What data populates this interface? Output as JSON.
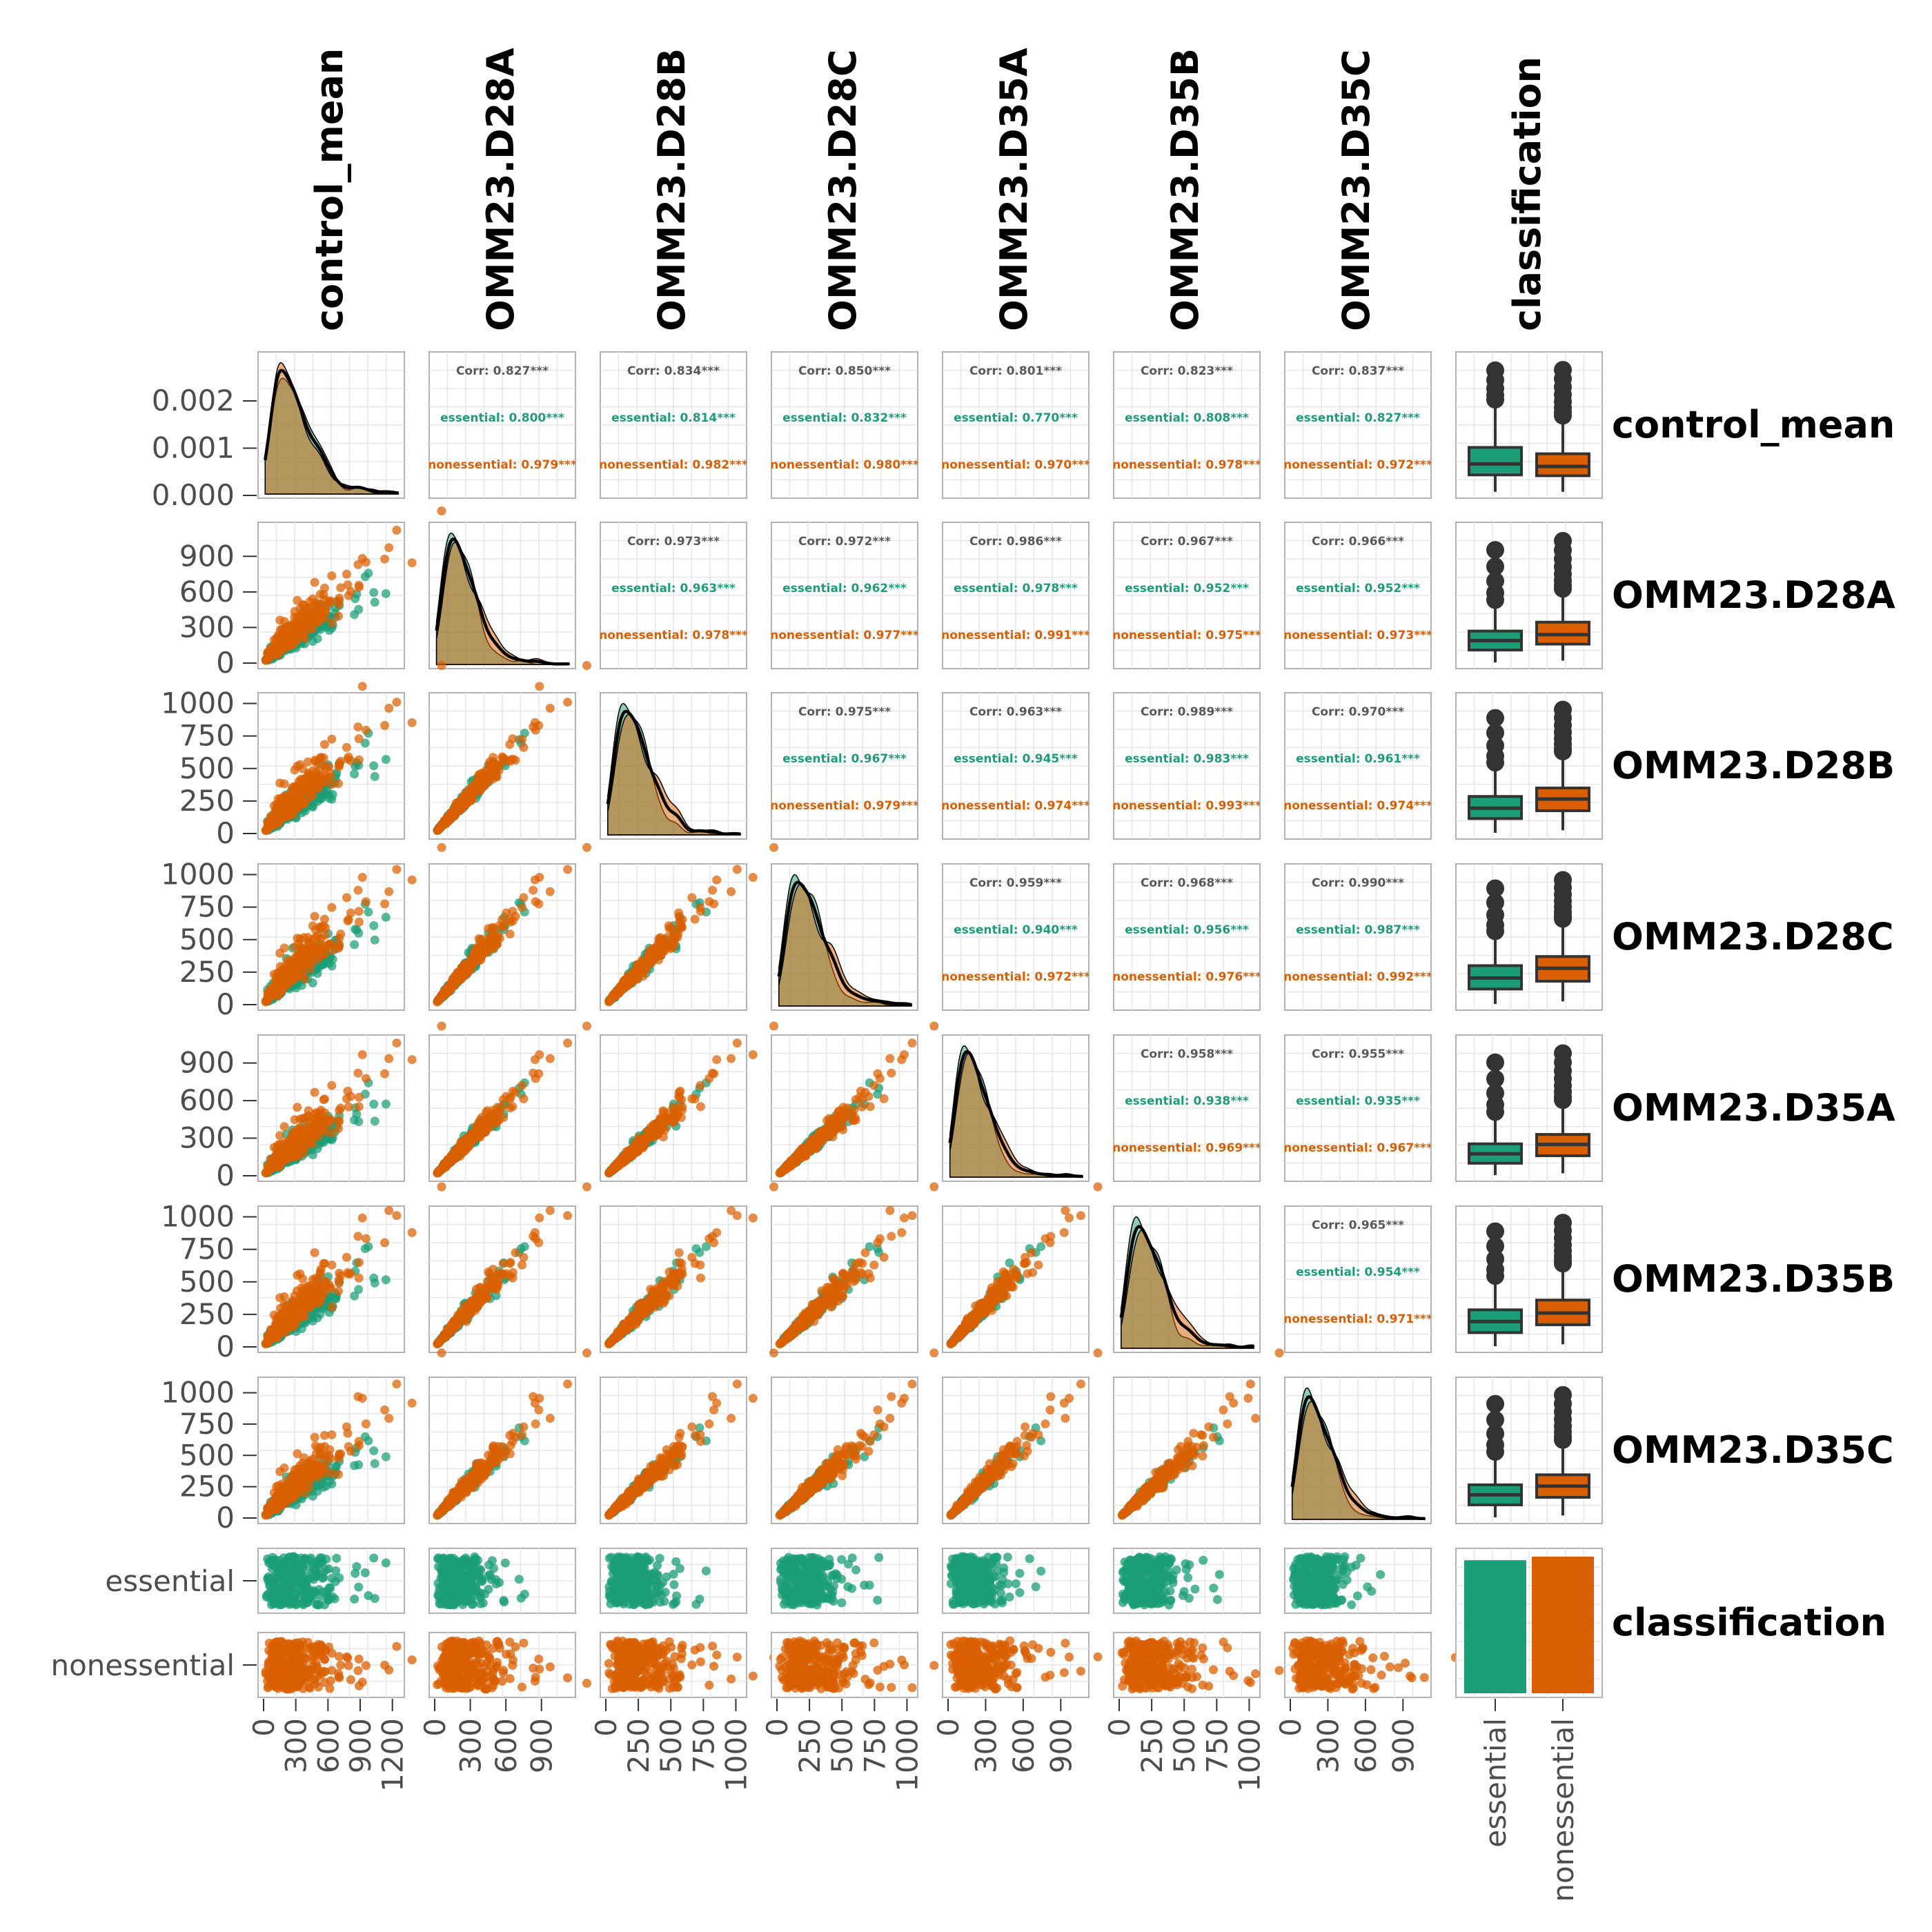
{
  "chart_data": {
    "type": "scatter",
    "title": "",
    "variables": [
      "control_mean",
      "OMM23.D28A",
      "OMM23.D28B",
      "OMM23.D28C",
      "OMM23.D35A",
      "OMM23.D35B",
      "OMM23.D35C",
      "classification"
    ],
    "groups": [
      "essential",
      "nonessential"
    ],
    "colors": {
      "essential": "#1b9e77",
      "nonessential": "#d95f02",
      "overall_corr_text": "#595959",
      "density_outline": "#000000",
      "box_outline": "#333333",
      "panel_border": "#b3b3b3",
      "grid": "#e6e6e6"
    },
    "x_tick_labels": [
      [
        "0",
        "300",
        "600",
        "900",
        "1200"
      ],
      [
        "0",
        "300",
        "600",
        "900"
      ],
      [
        "0",
        "250",
        "500",
        "750",
        "1000"
      ],
      [
        "0",
        "250",
        "500",
        "750",
        "1000"
      ],
      [
        "0",
        "300",
        "600",
        "900"
      ],
      [
        "0",
        "250",
        "500",
        "750",
        "1000"
      ],
      [
        "0",
        "300",
        "600",
        "900"
      ],
      [
        "essential",
        "nonessential"
      ]
    ],
    "y_tick_labels": [
      [
        "0.000",
        "0.001",
        "0.002"
      ],
      [
        "0",
        "300",
        "600",
        "900"
      ],
      [
        "0",
        "250",
        "500",
        "750",
        "1000"
      ],
      [
        "0",
        "250",
        "500",
        "750",
        "1000"
      ],
      [
        "0",
        "300",
        "600",
        "900"
      ],
      [
        "0",
        "250",
        "500",
        "750",
        "1000"
      ],
      [
        "0",
        "250",
        "500",
        "750",
        "1000"
      ],
      [
        "essential",
        "nonessential"
      ]
    ],
    "axis_ranges": [
      [
        0,
        1260
      ],
      [
        0,
        1140
      ],
      [
        0,
        1040
      ],
      [
        0,
        1040
      ],
      [
        0,
        1080
      ],
      [
        0,
        1040
      ],
      [
        0,
        1080
      ]
    ],
    "density_ylim": [
      0,
      0.00295
    ],
    "correlations": [
      {
        "row": 0,
        "col": 1,
        "labels": [
          "Corr: 0.827***",
          "essential: 0.800***",
          "nonessential: 0.979***"
        ]
      },
      {
        "row": 0,
        "col": 2,
        "labels": [
          "Corr: 0.834***",
          "essential: 0.814***",
          "nonessential: 0.982***"
        ]
      },
      {
        "row": 0,
        "col": 3,
        "labels": [
          "Corr: 0.850***",
          "essential: 0.832***",
          "nonessential: 0.980***"
        ]
      },
      {
        "row": 0,
        "col": 4,
        "labels": [
          "Corr: 0.801***",
          "essential: 0.770***",
          "nonessential: 0.970***"
        ]
      },
      {
        "row": 0,
        "col": 5,
        "labels": [
          "Corr: 0.823***",
          "essential: 0.808***",
          "nonessential: 0.978***"
        ]
      },
      {
        "row": 0,
        "col": 6,
        "labels": [
          "Corr: 0.837***",
          "essential: 0.827***",
          "nonessential: 0.972***"
        ]
      },
      {
        "row": 1,
        "col": 2,
        "labels": [
          "Corr: 0.973***",
          "essential: 0.963***",
          "nonessential: 0.978***"
        ]
      },
      {
        "row": 1,
        "col": 3,
        "labels": [
          "Corr: 0.972***",
          "essential: 0.962***",
          "nonessential: 0.977***"
        ]
      },
      {
        "row": 1,
        "col": 4,
        "labels": [
          "Corr: 0.986***",
          "essential: 0.978***",
          "nonessential: 0.991***"
        ]
      },
      {
        "row": 1,
        "col": 5,
        "labels": [
          "Corr: 0.967***",
          "essential: 0.952***",
          "nonessential: 0.975***"
        ]
      },
      {
        "row": 1,
        "col": 6,
        "labels": [
          "Corr: 0.966***",
          "essential: 0.952***",
          "nonessential: 0.973***"
        ]
      },
      {
        "row": 2,
        "col": 3,
        "labels": [
          "Corr: 0.975***",
          "essential: 0.967***",
          "nonessential: 0.979***"
        ]
      },
      {
        "row": 2,
        "col": 4,
        "labels": [
          "Corr: 0.963***",
          "essential: 0.945***",
          "nonessential: 0.974***"
        ]
      },
      {
        "row": 2,
        "col": 5,
        "labels": [
          "Corr: 0.989***",
          "essential: 0.983***",
          "nonessential: 0.993***"
        ]
      },
      {
        "row": 2,
        "col": 6,
        "labels": [
          "Corr: 0.970***",
          "essential: 0.961***",
          "nonessential: 0.974***"
        ]
      },
      {
        "row": 3,
        "col": 4,
        "labels": [
          "Corr: 0.959***",
          "essential: 0.940***",
          "nonessential: 0.972***"
        ]
      },
      {
        "row": 3,
        "col": 5,
        "labels": [
          "Corr: 0.968***",
          "essential: 0.956***",
          "nonessential: 0.976***"
        ]
      },
      {
        "row": 3,
        "col": 6,
        "labels": [
          "Corr: 0.990***",
          "essential: 0.987***",
          "nonessential: 0.992***"
        ]
      },
      {
        "row": 4,
        "col": 5,
        "labels": [
          "Corr: 0.958***",
          "essential: 0.938***",
          "nonessential: 0.969***"
        ]
      },
      {
        "row": 4,
        "col": 6,
        "labels": [
          "Corr: 0.955***",
          "essential: 0.935***",
          "nonessential: 0.967***"
        ]
      },
      {
        "row": 5,
        "col": 6,
        "labels": [
          "Corr: 0.965***",
          "essential: 0.954***",
          "nonessential: 0.971***"
        ]
      }
    ],
    "boxplot_summaries": [
      {
        "variable": "control_mean",
        "essential": {
          "q1": 0.00042,
          "median": 0.00068,
          "q3": 0.00107,
          "whisker_low": 2e-05,
          "whisker_high": 0.00215
        },
        "nonessential": {
          "q1": 0.0004,
          "median": 0.00062,
          "q3": 0.00092,
          "whisker_low": 2e-05,
          "whisker_high": 0.00175
        }
      },
      {
        "variable": "OMM23.D28A",
        "essential": {
          "q1": 110,
          "median": 190,
          "q3": 270,
          "whisker_low": 5,
          "whisker_high": 500
        },
        "nonessential": {
          "q1": 160,
          "median": 240,
          "q3": 345,
          "whisker_low": 20,
          "whisker_high": 600
        }
      },
      {
        "variable": "OMM23.D28B",
        "essential": {
          "q1": 115,
          "median": 195,
          "q3": 285,
          "whisker_low": 5,
          "whisker_high": 520
        },
        "nonessential": {
          "q1": 175,
          "median": 265,
          "q3": 350,
          "whisker_low": 25,
          "whisker_high": 610
        }
      },
      {
        "variable": "OMM23.D28C",
        "essential": {
          "q1": 120,
          "median": 205,
          "q3": 300,
          "whisker_low": 5,
          "whisker_high": 540
        },
        "nonessential": {
          "q1": 180,
          "median": 280,
          "q3": 370,
          "whisker_low": 25,
          "whisker_high": 640
        }
      },
      {
        "variable": "OMM23.D35A",
        "essential": {
          "q1": 100,
          "median": 175,
          "q3": 255,
          "whisker_low": 5,
          "whisker_high": 480
        },
        "nonessential": {
          "q1": 160,
          "median": 250,
          "q3": 330,
          "whisker_low": 20,
          "whisker_high": 580
        }
      },
      {
        "variable": "OMM23.D35B",
        "essential": {
          "q1": 110,
          "median": 195,
          "q3": 285,
          "whisker_low": 5,
          "whisker_high": 520
        },
        "nonessential": {
          "q1": 170,
          "median": 260,
          "q3": 360,
          "whisker_low": 20,
          "whisker_high": 620
        }
      },
      {
        "variable": "OMM23.D35C",
        "essential": {
          "q1": 105,
          "median": 185,
          "q3": 265,
          "whisker_low": 5,
          "whisker_high": 500
        },
        "nonessential": {
          "q1": 165,
          "median": 255,
          "q3": 345,
          "whisker_low": 20,
          "whisker_high": 600
        }
      }
    ],
    "class_counts": {
      "essential": 1100,
      "nonessential": 1130
    },
    "legend": "none",
    "grid": true
  }
}
